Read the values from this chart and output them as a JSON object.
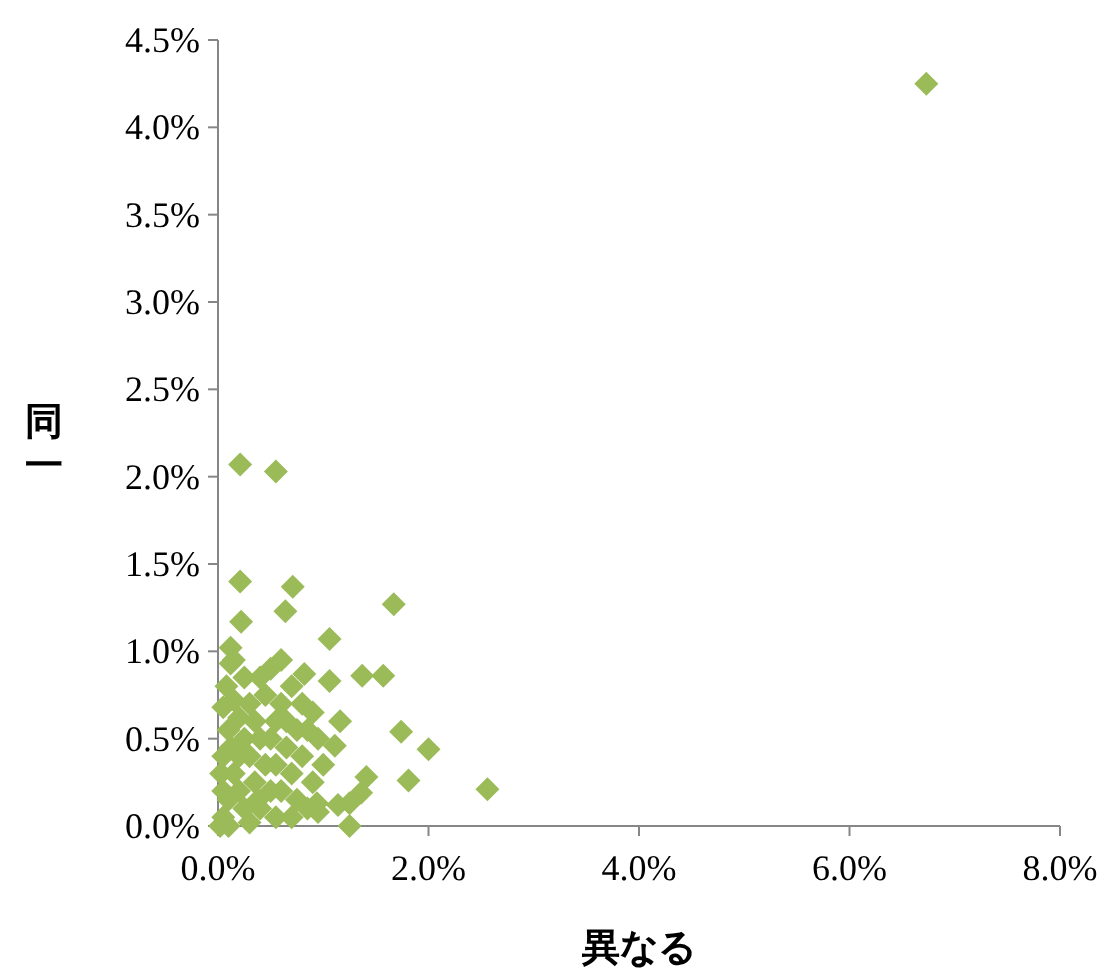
{
  "chart_data": {
    "type": "scatter",
    "xlabel": "異なる",
    "ylabel": "同一",
    "marker": "diamond",
    "grid": false,
    "xlim": [
      0,
      8
    ],
    "ylim": [
      0,
      4.5
    ],
    "xticks": [
      {
        "value": 0,
        "label": "0.0%"
      },
      {
        "value": 2,
        "label": "2.0%"
      },
      {
        "value": 4,
        "label": "4.0%"
      },
      {
        "value": 6,
        "label": "6.0%"
      },
      {
        "value": 8,
        "label": "8.0%"
      }
    ],
    "yticks": [
      {
        "value": 0,
        "label": "0.0%"
      },
      {
        "value": 0.5,
        "label": "0.5%"
      },
      {
        "value": 1,
        "label": "1.0%"
      },
      {
        "value": 1.5,
        "label": "1.5%"
      },
      {
        "value": 2,
        "label": "2.0%"
      },
      {
        "value": 2.5,
        "label": "2.5%"
      },
      {
        "value": 3,
        "label": "3.0%"
      },
      {
        "value": 3.5,
        "label": "3.5%"
      },
      {
        "value": 4,
        "label": "4.0%"
      },
      {
        "value": 4.5,
        "label": "4.5%"
      }
    ],
    "series": [
      {
        "color": "#9bbb59",
        "x": [
          6.73,
          0.21,
          0.55,
          0.21,
          0.71,
          1.67,
          0.22,
          0.64,
          0.12,
          0.12,
          1.06,
          1.37,
          1.57,
          1.06,
          0.82,
          1.74,
          2.0,
          1.81,
          2.56,
          1.41,
          1.36,
          1.25,
          1.16,
          1.11,
          1.14,
          1.25,
          0.94,
          0.05,
          0.1,
          0.15,
          0.05,
          0.1,
          0.05,
          0.15,
          0.2,
          0.25,
          0.3,
          0.35,
          0.4,
          0.45,
          0.5,
          0.55,
          0.6,
          0.65,
          0.7,
          0.75,
          0.8,
          0.85,
          0.9,
          0.95,
          0.55,
          0.3,
          0.2,
          0.35,
          0.45,
          0.5,
          0.6,
          0.7,
          0.4,
          0.3,
          0.25,
          0.15,
          0.05,
          0.02,
          0.1,
          0.6,
          0.65,
          0.75,
          0.85,
          0.5,
          0.4,
          1.0,
          0.95,
          0.8,
          0.55,
          0.25,
          0.12,
          0.7,
          0.03,
          0.08,
          0.2,
          0.38,
          0.9
        ],
        "values": [
          4.25,
          2.07,
          2.03,
          1.4,
          1.37,
          1.27,
          1.17,
          1.23,
          1.02,
          0.93,
          1.07,
          0.86,
          0.86,
          0.83,
          0.87,
          0.54,
          0.44,
          0.26,
          0.21,
          0.28,
          0.19,
          0.0,
          0.6,
          0.46,
          0.12,
          0.13,
          0.13,
          0.05,
          0.15,
          0.3,
          0.4,
          0.55,
          0.68,
          0.72,
          0.62,
          0.5,
          0.4,
          0.25,
          0.1,
          0.35,
          0.5,
          0.6,
          0.7,
          0.45,
          0.3,
          0.15,
          0.4,
          0.55,
          0.25,
          0.08,
          0.05,
          0.02,
          0.2,
          0.6,
          0.75,
          0.9,
          0.95,
          0.8,
          0.85,
          0.7,
          0.85,
          0.95,
          0.2,
          0.0,
          0.0,
          0.2,
          0.6,
          0.55,
          0.1,
          0.2,
          0.5,
          0.35,
          0.5,
          0.7,
          0.35,
          0.1,
          0.45,
          0.05,
          0.3,
          0.8,
          0.4,
          0.15,
          0.65
        ]
      }
    ]
  }
}
